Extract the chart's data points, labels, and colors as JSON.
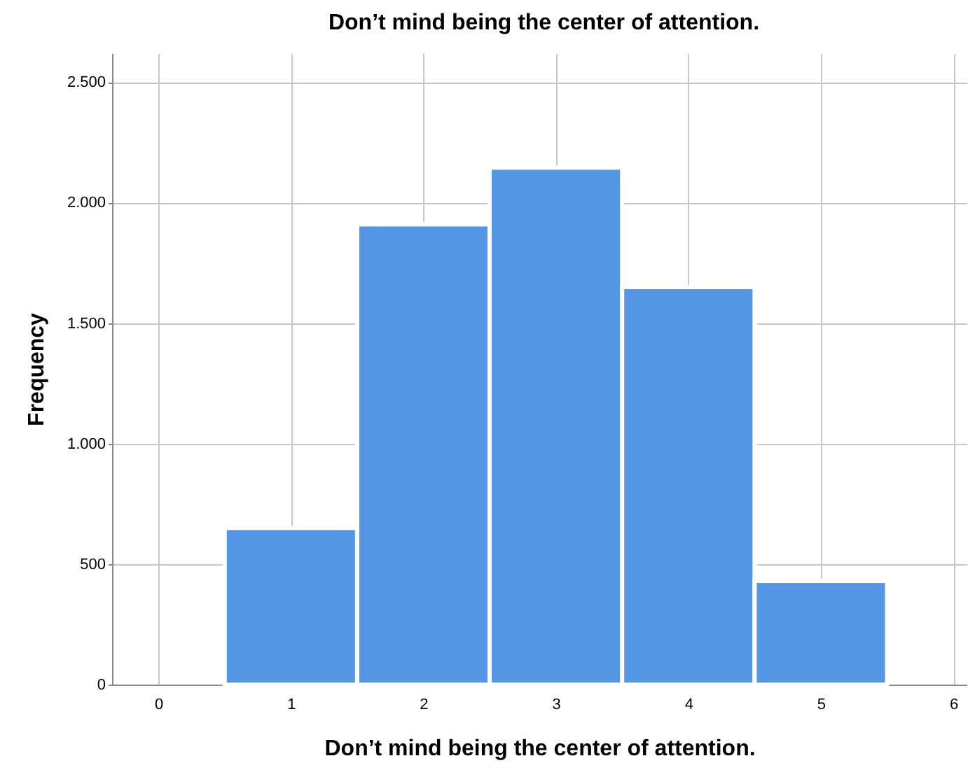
{
  "chart_data": {
    "type": "histogram",
    "title": "Don’t mind being the center of attention.",
    "xlabel": "Don’t mind being the center of attention.",
    "ylabel": "Frequency",
    "bins": [
      0.5,
      1.5,
      2.5,
      3.5,
      4.5,
      5.5
    ],
    "values": [
      650,
      1910,
      2145,
      1650,
      430
    ],
    "color": "#5596e5",
    "xlim": [
      -0.35,
      6.1
    ],
    "xticks": [
      0,
      1,
      2,
      3,
      4,
      5,
      6
    ],
    "ylim": [
      0,
      2620
    ],
    "yticks": [
      0,
      500,
      {
        "value": 1000,
        "label": "1.000"
      },
      {
        "value": 1500,
        "label": "1.500"
      },
      {
        "value": 2000,
        "label": "2.000"
      },
      {
        "value": 2500,
        "label": "2.500"
      }
    ],
    "grid": true
  }
}
